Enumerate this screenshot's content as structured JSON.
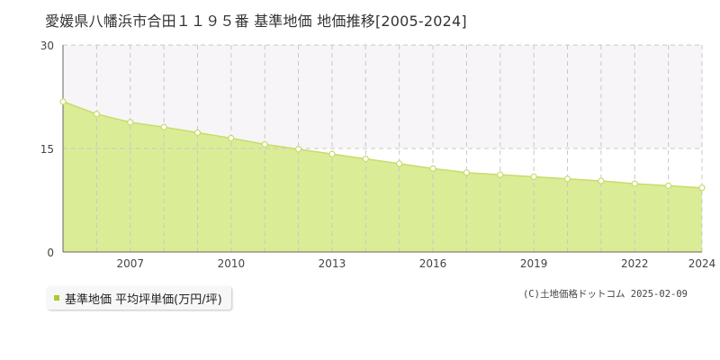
{
  "title": "愛媛県八幡浜市合田１１９５番 基準地価 地価推移[2005-2024]",
  "credit": "(C)土地価格ドットコム 2025-02-09",
  "chart_data": {
    "type": "area",
    "title": "愛媛県八幡浜市合田１１９５番 基準地価 地価推移[2005-2024]",
    "xlabel": "",
    "ylabel": "",
    "x": [
      2005,
      2006,
      2007,
      2008,
      2009,
      2010,
      2011,
      2012,
      2013,
      2014,
      2015,
      2016,
      2017,
      2018,
      2019,
      2020,
      2021,
      2022,
      2023,
      2024
    ],
    "series": [
      {
        "name": "基準地価 平均坪単価(万円/坪)",
        "values": [
          21.8,
          20.0,
          18.8,
          18.1,
          17.3,
          16.5,
          15.6,
          14.9,
          14.2,
          13.5,
          12.8,
          12.1,
          11.5,
          11.2,
          10.9,
          10.6,
          10.3,
          9.9,
          9.6,
          9.3
        ]
      }
    ],
    "xlim": [
      2005,
      2024
    ],
    "ylim": [
      0,
      30
    ],
    "x_tick_labels": [
      "2007",
      "2010",
      "2013",
      "2016",
      "2019",
      "2022",
      "2024"
    ],
    "y_tick_labels": [
      "0",
      "15",
      "30"
    ],
    "grid": true,
    "legend_position": "bottom-left",
    "colors": {
      "fill": "#dbec96",
      "line": "#c8dc6a",
      "marker_fill": "#ffffff",
      "marker_stroke": "#c8dc6a",
      "band_above_15": "#f7f5f8",
      "grid": "#c8c8c8",
      "axis": "#666666",
      "legend_swatch": "#a8cc2e"
    }
  }
}
